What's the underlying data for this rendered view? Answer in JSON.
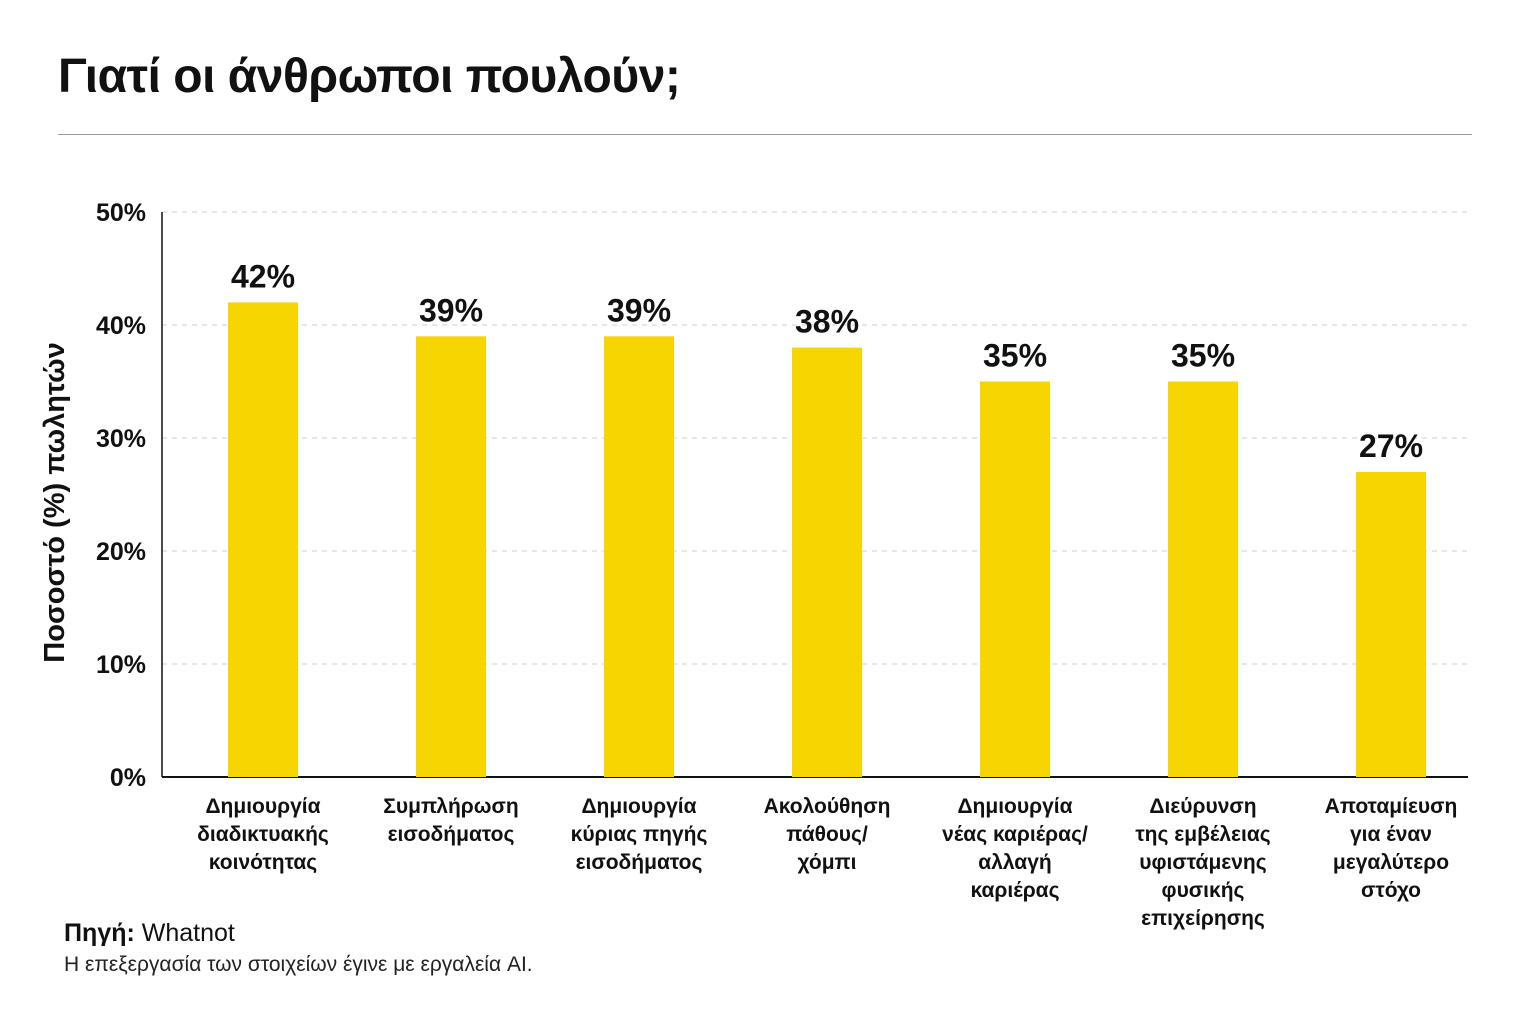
{
  "title": "Γιατί οι άνθρωποι πουλούν;",
  "chart_data": {
    "type": "bar",
    "ylabel": "Ποσοστό (%) πωλητών",
    "ylim": [
      0,
      50
    ],
    "yticks": [
      0,
      10,
      20,
      30,
      40,
      50
    ],
    "ytick_labels": [
      "0%",
      "10%",
      "20%",
      "30%",
      "40%",
      "50%"
    ],
    "grid": true,
    "bar_color": "#F7D600",
    "categories": [
      [
        "Δημιουργία",
        "διαδικτυακής",
        "κοινότητας"
      ],
      [
        "Συμπλήρωση",
        "εισοδήματος"
      ],
      [
        "Δημιουργία",
        "κύριας πηγής",
        "εισοδήματος"
      ],
      [
        "Ακολούθηση",
        "πάθους/",
        "χόμπι"
      ],
      [
        "Δημιουργία",
        "νέας καριέρας/",
        "αλλαγή",
        "καριέρας"
      ],
      [
        "Διεύρυνση",
        "της εμβέλειας",
        "υφιστάμενης",
        "φυσικής",
        "επιχείρησης"
      ],
      [
        "Αποταμίευση",
        "για έναν",
        "μεγαλύτερο",
        "στόχο"
      ]
    ],
    "values": [
      42,
      39,
      39,
      38,
      35,
      35,
      27
    ],
    "value_labels": [
      "42%",
      "39%",
      "39%",
      "38%",
      "35%",
      "35%",
      "27%"
    ]
  },
  "source": {
    "prefix": "Πηγή:",
    "name": " Whatnot"
  },
  "note": "Η επεξεργασία των στοιχείων έγινε με εργαλεία AI."
}
